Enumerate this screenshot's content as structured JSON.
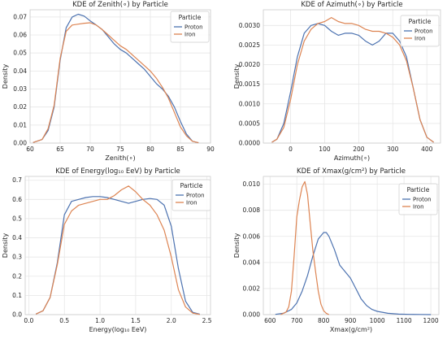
{
  "colors": {
    "proton": "#4c72b0",
    "iron": "#dd8452",
    "grid": "#e6e6e6",
    "frame": "#cccccc"
  },
  "chart_data": [
    {
      "type": "line",
      "title": "KDE of Zenith(∘) by Particle",
      "xlabel": "Zenith(∘)",
      "ylabel": "Density",
      "xlim": [
        60,
        90
      ],
      "ylim": [
        0,
        0.074
      ],
      "xticks": [
        60,
        65,
        70,
        75,
        80,
        85,
        90
      ],
      "xtick_labels": [
        "60",
        "65",
        "70",
        "75",
        "80",
        "85",
        "90"
      ],
      "yticks": [
        0,
        0.01,
        0.02,
        0.03,
        0.04,
        0.05,
        0.06,
        0.07
      ],
      "ytick_labels": [
        "0.00",
        "0.01",
        "0.02",
        "0.03",
        "0.04",
        "0.05",
        "0.06",
        "0.07"
      ],
      "legend_title": "Particle",
      "legend_position": "top-right",
      "series": [
        {
          "name": "Proton",
          "x": [
            60.5,
            62,
            63,
            64,
            65,
            66,
            67,
            68,
            69,
            70,
            71,
            72,
            73,
            74,
            75,
            76,
            77,
            78,
            79,
            80,
            81,
            82,
            83,
            84,
            85,
            86,
            87,
            88
          ],
          "y": [
            0.0003,
            0.002,
            0.007,
            0.02,
            0.046,
            0.064,
            0.07,
            0.0715,
            0.0705,
            0.0678,
            0.0655,
            0.063,
            0.059,
            0.055,
            0.052,
            0.05,
            0.047,
            0.044,
            0.041,
            0.037,
            0.033,
            0.03,
            0.026,
            0.02,
            0.012,
            0.005,
            0.001,
            0.0002
          ]
        },
        {
          "name": "Iron",
          "x": [
            60.5,
            62,
            63,
            64,
            65,
            66,
            67,
            68,
            69,
            70,
            71,
            72,
            73,
            74,
            75,
            76,
            77,
            78,
            79,
            80,
            81,
            82,
            83,
            84,
            85,
            86,
            87,
            88
          ],
          "y": [
            0.0003,
            0.002,
            0.008,
            0.021,
            0.047,
            0.062,
            0.0655,
            0.066,
            0.0665,
            0.0668,
            0.0655,
            0.063,
            0.06,
            0.057,
            0.054,
            0.052,
            0.049,
            0.046,
            0.043,
            0.04,
            0.036,
            0.031,
            0.025,
            0.017,
            0.009,
            0.004,
            0.001,
            0.0002
          ]
        }
      ]
    },
    {
      "type": "line",
      "title": "KDE of Azimuth(∘) by Particle",
      "xlabel": "Azimuth(∘)",
      "ylabel": "Density",
      "xlim": [
        -80,
        440
      ],
      "ylim": [
        0,
        0.0034
      ],
      "xticks": [
        0,
        100,
        200,
        300,
        400
      ],
      "xtick_labels": [
        "0",
        "100",
        "200",
        "300",
        "400"
      ],
      "yticks": [
        0,
        0.0005,
        0.001,
        0.0015,
        0.002,
        0.0025,
        0.003
      ],
      "ytick_labels": [
        "0.0000",
        "0.0005",
        "0.0010",
        "0.0015",
        "0.0020",
        "0.0025",
        "0.0030"
      ],
      "legend_title": "Particle",
      "legend_position": "top-right",
      "series": [
        {
          "name": "Proton",
          "x": [
            -55,
            -40,
            -20,
            0,
            20,
            40,
            60,
            80,
            100,
            120,
            140,
            160,
            180,
            200,
            220,
            240,
            260,
            280,
            300,
            320,
            340,
            360,
            380,
            400,
            420
          ],
          "y": [
            2e-05,
            0.0001,
            0.0005,
            0.0013,
            0.0022,
            0.0028,
            0.003,
            0.00305,
            0.003,
            0.00285,
            0.00275,
            0.0028,
            0.0028,
            0.00275,
            0.0026,
            0.0025,
            0.0026,
            0.0028,
            0.0028,
            0.0026,
            0.0022,
            0.0014,
            0.0006,
            0.00015,
            2e-05
          ]
        },
        {
          "name": "Iron",
          "x": [
            -55,
            -40,
            -20,
            0,
            20,
            40,
            60,
            80,
            100,
            120,
            140,
            160,
            180,
            200,
            220,
            240,
            260,
            280,
            300,
            320,
            340,
            360,
            380,
            400,
            420
          ],
          "y": [
            2e-05,
            0.0001,
            0.0004,
            0.0011,
            0.002,
            0.0026,
            0.0029,
            0.00305,
            0.0031,
            0.0032,
            0.0031,
            0.00305,
            0.00305,
            0.003,
            0.0029,
            0.00285,
            0.00285,
            0.0028,
            0.0027,
            0.0025,
            0.0021,
            0.0014,
            0.0006,
            0.00015,
            2e-05
          ]
        }
      ]
    },
    {
      "type": "line",
      "title": "KDE of Energy(log₁₀ EeV) by Particle",
      "xlabel": "Energy(log₁₀ EeV)",
      "ylabel": "Density",
      "xlim": [
        -0.05,
        2.55
      ],
      "ylim": [
        0,
        0.72
      ],
      "xticks": [
        0,
        0.5,
        1.0,
        1.5,
        2.0,
        2.5
      ],
      "xtick_labels": [
        "0.0",
        "0.5",
        "1.0",
        "1.5",
        "2.0",
        "2.5"
      ],
      "yticks": [
        0,
        0.1,
        0.2,
        0.3,
        0.4,
        0.5,
        0.6,
        0.7
      ],
      "ytick_labels": [
        "0.0",
        "0.1",
        "0.2",
        "0.3",
        "0.4",
        "0.5",
        "0.6",
        "0.7"
      ],
      "legend_title": "Particle",
      "legend_position": "top-right",
      "series": [
        {
          "name": "Proton",
          "x": [
            0.1,
            0.2,
            0.3,
            0.4,
            0.5,
            0.6,
            0.7,
            0.8,
            0.9,
            1.0,
            1.1,
            1.2,
            1.3,
            1.4,
            1.5,
            1.6,
            1.7,
            1.8,
            1.9,
            2.0,
            2.1,
            2.2,
            2.3,
            2.4
          ],
          "y": [
            0.003,
            0.02,
            0.09,
            0.27,
            0.52,
            0.59,
            0.6,
            0.61,
            0.615,
            0.615,
            0.61,
            0.6,
            0.59,
            0.58,
            0.59,
            0.6,
            0.605,
            0.6,
            0.57,
            0.46,
            0.24,
            0.07,
            0.012,
            0.002
          ]
        },
        {
          "name": "Iron",
          "x": [
            0.1,
            0.2,
            0.3,
            0.4,
            0.5,
            0.6,
            0.7,
            0.8,
            0.9,
            1.0,
            1.1,
            1.2,
            1.3,
            1.4,
            1.5,
            1.6,
            1.7,
            1.8,
            1.9,
            2.0,
            2.1,
            2.2,
            2.3,
            2.4
          ],
          "y": [
            0.003,
            0.02,
            0.09,
            0.26,
            0.47,
            0.54,
            0.57,
            0.58,
            0.59,
            0.6,
            0.6,
            0.62,
            0.65,
            0.67,
            0.64,
            0.6,
            0.57,
            0.52,
            0.44,
            0.3,
            0.13,
            0.04,
            0.008,
            0.001
          ]
        }
      ]
    },
    {
      "type": "line",
      "title": "KDE of Xmax(g/cm²) by Particle",
      "xlabel": "Xmax(g/cm²)",
      "ylabel": "Density",
      "xlim": [
        575,
        1230
      ],
      "ylim": [
        0,
        0.0106
      ],
      "xticks": [
        600,
        700,
        800,
        900,
        1000,
        1100,
        1200
      ],
      "xtick_labels": [
        "600",
        "700",
        "800",
        "900",
        "1000",
        "1100",
        "1200"
      ],
      "yticks": [
        0,
        0.002,
        0.004,
        0.006,
        0.008,
        0.01
      ],
      "ytick_labels": [
        "0.000",
        "0.002",
        "0.004",
        "0.006",
        "0.008",
        "0.010"
      ],
      "legend_title": "Particle",
      "legend_position": "top-right",
      "series": [
        {
          "name": "Proton",
          "x": [
            620,
            650,
            680,
            700,
            720,
            740,
            760,
            780,
            800,
            810,
            820,
            840,
            860,
            880,
            900,
            920,
            940,
            960,
            980,
            1000,
            1040,
            1080,
            1120,
            1160,
            1200
          ],
          "y": [
            2e-05,
            0.0001,
            0.0004,
            0.0009,
            0.0018,
            0.003,
            0.0045,
            0.0058,
            0.0063,
            0.0063,
            0.006,
            0.005,
            0.0038,
            0.0033,
            0.0028,
            0.002,
            0.0012,
            0.0007,
            0.0004,
            0.00025,
            0.0001,
            4e-05,
            2e-05,
            1e-05,
            0.0
          ]
        },
        {
          "name": "Iron",
          "x": [
            640,
            660,
            670,
            680,
            690,
            700,
            710,
            720,
            730,
            740,
            750,
            760,
            770,
            780,
            790,
            800,
            810,
            820
          ],
          "y": [
            0.0,
            0.0002,
            0.0006,
            0.0018,
            0.0045,
            0.0075,
            0.0088,
            0.0098,
            0.0102,
            0.0092,
            0.007,
            0.0049,
            0.0033,
            0.0018,
            0.0008,
            0.0003,
            0.0001,
            0.0
          ]
        }
      ]
    }
  ]
}
